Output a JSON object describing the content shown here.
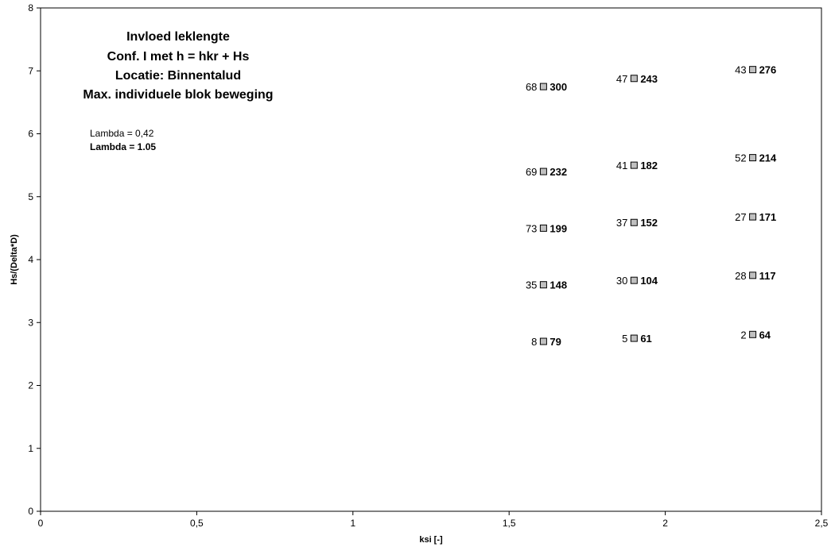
{
  "chart_data": {
    "type": "scatter",
    "title_lines": [
      "Invloed leklengte",
      "Conf. I met h = hkr + Hs",
      "Locatie: Binnentalud",
      "Max. individuele blok beweging"
    ],
    "legend": [
      {
        "text": "Lambda = 0,42",
        "bold": false
      },
      {
        "text": "Lambda = 1.05",
        "bold": true
      }
    ],
    "xlabel": "ksi [-]",
    "ylabel": "Hs/(Delta*D)",
    "xlim": [
      0,
      2.5
    ],
    "ylim": [
      0,
      8
    ],
    "x_ticks": [
      {
        "value": 0,
        "label": "0"
      },
      {
        "value": 0.5,
        "label": "0,5"
      },
      {
        "value": 1,
        "label": "1"
      },
      {
        "value": 1.5,
        "label": "1,5"
      },
      {
        "value": 2,
        "label": "2"
      },
      {
        "value": 2.5,
        "label": "2,5"
      }
    ],
    "y_ticks": [
      {
        "value": 0,
        "label": "0"
      },
      {
        "value": 1,
        "label": "1"
      },
      {
        "value": 2,
        "label": "2"
      },
      {
        "value": 3,
        "label": "3"
      },
      {
        "value": 4,
        "label": "4"
      },
      {
        "value": 5,
        "label": "5"
      },
      {
        "value": 6,
        "label": "6"
      },
      {
        "value": 7,
        "label": "7"
      },
      {
        "value": 8,
        "label": "8"
      }
    ],
    "marker_color": "#c0c0c0",
    "points": [
      {
        "x": 1.61,
        "y": 6.75,
        "label_a": "68",
        "label_b": "300"
      },
      {
        "x": 1.61,
        "y": 5.4,
        "label_a": "69",
        "label_b": "232"
      },
      {
        "x": 1.61,
        "y": 4.5,
        "label_a": "73",
        "label_b": "199"
      },
      {
        "x": 1.61,
        "y": 3.6,
        "label_a": "35",
        "label_b": "148"
      },
      {
        "x": 1.61,
        "y": 2.7,
        "label_a": "8",
        "label_b": "79"
      },
      {
        "x": 1.9,
        "y": 6.88,
        "label_a": "47",
        "label_b": "243"
      },
      {
        "x": 1.9,
        "y": 5.5,
        "label_a": "41",
        "label_b": "182"
      },
      {
        "x": 1.9,
        "y": 4.59,
        "label_a": "37",
        "label_b": "152"
      },
      {
        "x": 1.9,
        "y": 3.67,
        "label_a": "30",
        "label_b": "104"
      },
      {
        "x": 1.9,
        "y": 2.75,
        "label_a": "5",
        "label_b": "61"
      },
      {
        "x": 2.28,
        "y": 7.02,
        "label_a": "43",
        "label_b": "276"
      },
      {
        "x": 2.28,
        "y": 5.62,
        "label_a": "52",
        "label_b": "214"
      },
      {
        "x": 2.28,
        "y": 4.68,
        "label_a": "27",
        "label_b": "171"
      },
      {
        "x": 2.28,
        "y": 3.75,
        "label_a": "28",
        "label_b": "117"
      },
      {
        "x": 2.28,
        "y": 2.81,
        "label_a": "2",
        "label_b": "64"
      }
    ]
  }
}
